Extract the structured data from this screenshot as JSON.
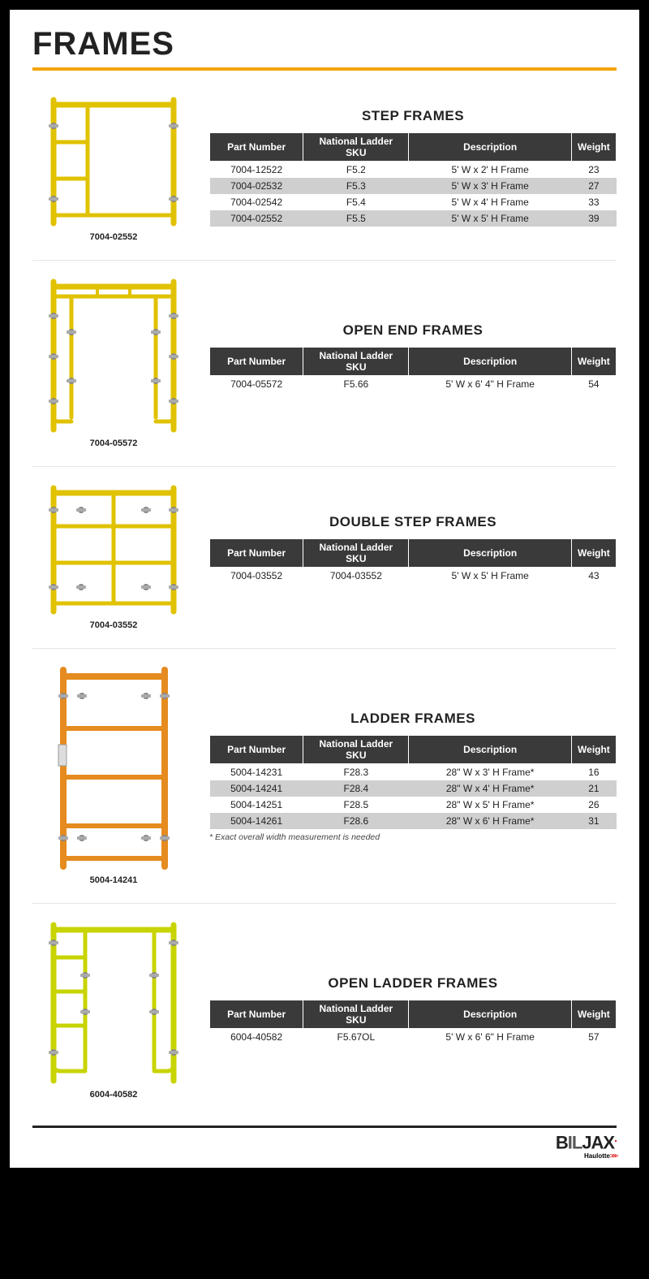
{
  "page_title": "FRAMES",
  "columns": [
    "Part Number",
    "National Ladder SKU",
    "Description",
    "Weight"
  ],
  "colors": {
    "accent": "#f5a400",
    "header_bg": "#3a3a3a",
    "header_fg": "#ffffff",
    "row_alt": "#cfcfcf",
    "border": "#000000",
    "frame_yellow": "#e0c200",
    "frame_yellow_dark": "#c9ad00",
    "frame_orange": "#e58b1f",
    "frame_lime": "#c8d400"
  },
  "sections": [
    {
      "title": "STEP FRAMES",
      "caption": "7004-02552",
      "diagram": "step",
      "col_widths": [
        "23%",
        "26%",
        "40%",
        "11%"
      ],
      "title_spacer": 18,
      "rows": [
        [
          "7004-12522",
          "F5.2",
          "5' W x 2' H Frame",
          "23"
        ],
        [
          "7004-02532",
          "F5.3",
          "5' W x 3' H Frame",
          "27"
        ],
        [
          "7004-02542",
          "F5.4",
          "5' W x 4' H Frame",
          "33"
        ],
        [
          "7004-02552",
          "F5.5",
          "5' W x 5' H Frame",
          "39"
        ]
      ]
    },
    {
      "title": "OPEN END FRAMES",
      "caption": "7004-05572",
      "diagram": "open_end",
      "col_widths": [
        "23%",
        "26%",
        "40%",
        "11%"
      ],
      "title_spacer": 58,
      "rows": [
        [
          "7004-05572",
          "F5.66",
          "5' W x 6' 4\" H Frame",
          "54"
        ]
      ]
    },
    {
      "title": "DOUBLE STEP FRAMES",
      "caption": "7004-03552",
      "diagram": "double_step",
      "col_widths": [
        "23%",
        "26%",
        "40%",
        "11%"
      ],
      "title_spacer": 40,
      "rows": [
        [
          "7004-03552",
          "7004-03552",
          "5' W x 5' H Frame",
          "43"
        ]
      ]
    },
    {
      "title": "LADDER FRAMES",
      "caption": "5004-14241",
      "diagram": "ladder",
      "col_widths": [
        "23%",
        "26%",
        "40%",
        "11%"
      ],
      "title_spacer": 58,
      "footnote": "* Exact overall width measurement is needed",
      "rows": [
        [
          "5004-14231",
          "F28.3",
          "28\" W x 3' H Frame*",
          "16"
        ],
        [
          "5004-14241",
          "F28.4",
          "28\" W x 4' H Frame*",
          "21"
        ],
        [
          "5004-14251",
          "F28.5",
          "28\" W x 5' H Frame*",
          "26"
        ],
        [
          "5004-14261",
          "F28.6",
          "28\" W x 6' H Frame*",
          "31"
        ]
      ]
    },
    {
      "title": "OPEN LADDER FRAMES",
      "caption": "6004-40582",
      "diagram": "open_ladder",
      "col_widths": [
        "23%",
        "26%",
        "40%",
        "11%"
      ],
      "title_spacer": 70,
      "rows": [
        [
          "6004-40582",
          "F5.67OL",
          "5' W x 6' 6\" H Frame",
          "57"
        ]
      ]
    }
  ],
  "logo": {
    "main": "BILJAX",
    "sub": "Haulotte",
    "arrow": ">>>"
  }
}
